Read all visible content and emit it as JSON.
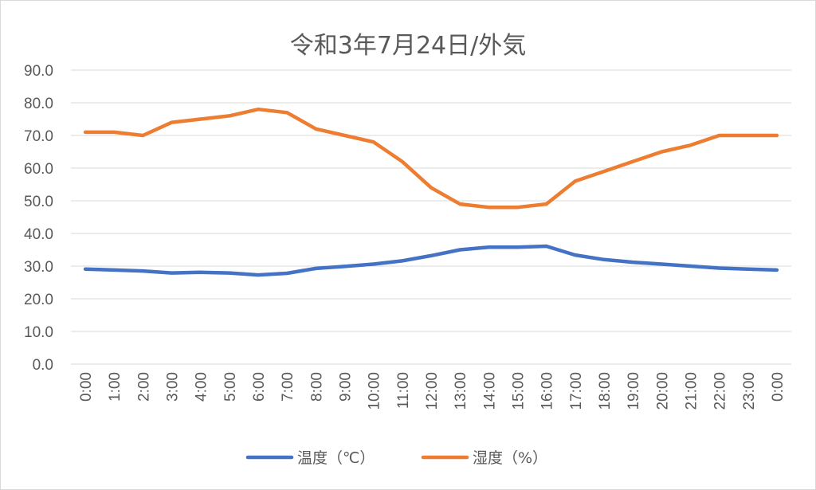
{
  "chart_data": {
    "type": "line",
    "title": "令和3年7月24日/外気",
    "categories": [
      "0:00",
      "1:00",
      "2:00",
      "3:00",
      "4:00",
      "5:00",
      "6:00",
      "7:00",
      "8:00",
      "9:00",
      "10:00",
      "11:00",
      "12:00",
      "13:00",
      "14:00",
      "15:00",
      "16:00",
      "17:00",
      "18:00",
      "19:00",
      "20:00",
      "21:00",
      "22:00",
      "23:00",
      "0:00"
    ],
    "ylim": [
      0,
      90
    ],
    "yticks": [
      "0.0",
      "10.0",
      "20.0",
      "30.0",
      "40.0",
      "50.0",
      "60.0",
      "70.0",
      "80.0",
      "90.0"
    ],
    "grid": true,
    "legend_position": "bottom",
    "series": [
      {
        "name": "温度（℃）",
        "color": "#4472c4",
        "values": [
          29.1,
          28.8,
          28.5,
          27.9,
          28.1,
          27.9,
          27.3,
          27.8,
          29.3,
          29.9,
          30.6,
          31.6,
          33.2,
          35.0,
          35.8,
          35.8,
          36.1,
          33.4,
          32.0,
          31.2,
          30.6,
          30.0,
          29.4,
          29.1,
          28.8
        ]
      },
      {
        "name": "湿度（%）",
        "color": "#ed7d31",
        "values": [
          71,
          71,
          70,
          74,
          75,
          76,
          78,
          77,
          72,
          70,
          68,
          62,
          54,
          49,
          48,
          48,
          49,
          56,
          59,
          62,
          65,
          67,
          70,
          70,
          70
        ]
      }
    ]
  }
}
